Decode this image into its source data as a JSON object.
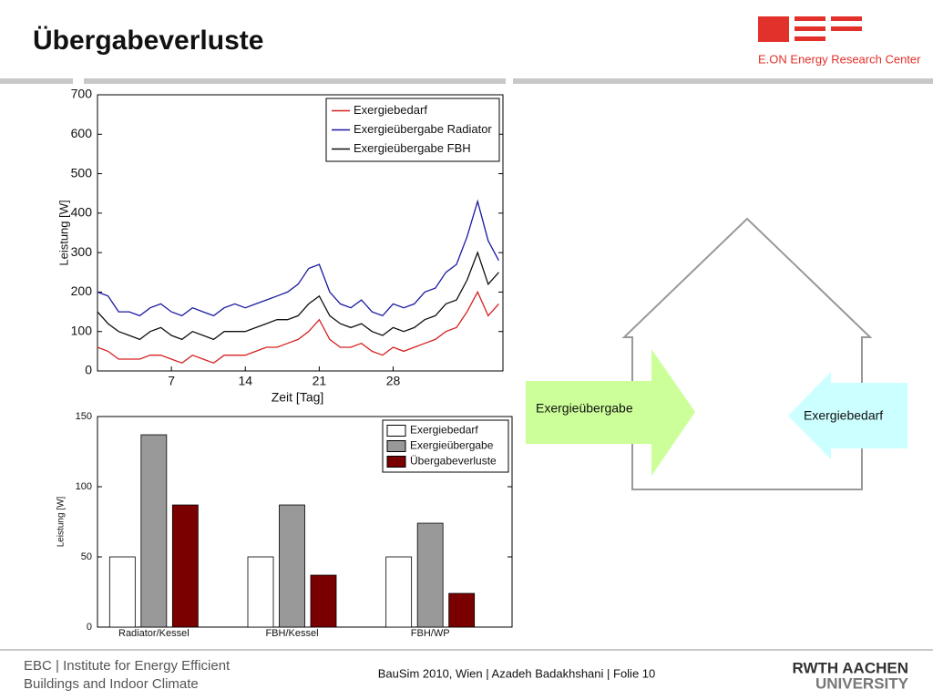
{
  "header": {
    "title": "Übergabeverluste",
    "logo_text": "E.ON Energy Research Center"
  },
  "chart_data": [
    {
      "type": "line",
      "xlabel": "Zeit [Tag]",
      "ylabel": "Leistung [W]",
      "x": [
        0,
        1,
        2,
        3,
        4,
        5,
        6,
        7,
        8,
        9,
        10,
        11,
        12,
        13,
        14,
        15,
        16,
        17,
        18,
        19,
        20,
        21,
        22,
        23,
        24,
        25,
        26,
        27,
        28,
        29,
        30,
        31,
        32,
        33,
        34,
        35,
        36,
        37,
        38
      ],
      "xlim": [
        0,
        38.4
      ],
      "xticks": [
        7,
        14,
        21,
        28
      ],
      "ylim": [
        0,
        700
      ],
      "yticks": [
        0,
        100,
        200,
        300,
        400,
        500,
        600,
        700
      ],
      "legend": "upper right",
      "series": [
        {
          "name": "Exergiebedarf",
          "color": "#d62020",
          "values": [
            60,
            50,
            30,
            30,
            30,
            40,
            40,
            30,
            20,
            40,
            30,
            20,
            40,
            40,
            40,
            50,
            60,
            60,
            70,
            80,
            100,
            130,
            80,
            60,
            60,
            70,
            50,
            40,
            60,
            50,
            60,
            70,
            80,
            100,
            110,
            150,
            200,
            140,
            170
          ]
        },
        {
          "name": "Exergieübergabe Radiator",
          "color": "#1a1aa0",
          "values": [
            200,
            190,
            150,
            150,
            140,
            160,
            170,
            150,
            140,
            160,
            150,
            140,
            160,
            170,
            160,
            170,
            180,
            190,
            200,
            220,
            260,
            270,
            200,
            170,
            160,
            180,
            150,
            140,
            170,
            160,
            170,
            200,
            210,
            250,
            270,
            340,
            430,
            330,
            280
          ]
        },
        {
          "name": "Exergieübergabe FBH",
          "color": "#111111",
          "values": [
            150,
            120,
            100,
            90,
            80,
            100,
            110,
            90,
            80,
            100,
            90,
            80,
            100,
            100,
            100,
            110,
            120,
            130,
            130,
            140,
            170,
            190,
            140,
            120,
            110,
            120,
            100,
            90,
            110,
            100,
            110,
            130,
            140,
            170,
            180,
            230,
            300,
            220,
            250
          ]
        }
      ]
    },
    {
      "type": "bar",
      "ylabel": "Leistung [W]",
      "categories": [
        "Radiator/Kessel",
        "FBH/Kessel",
        "FBH/WP"
      ],
      "ylim": [
        0,
        150
      ],
      "yticks": [
        0,
        50,
        100,
        150
      ],
      "legend": "upper right",
      "series": [
        {
          "name": "Exergiebedarf",
          "color": "#ffffff",
          "values": [
            50,
            50,
            50
          ]
        },
        {
          "name": "Exergieübergabe",
          "color": "#999999",
          "values": [
            137,
            87,
            74
          ]
        },
        {
          "name": "Übergabeverluste",
          "color": "#7a0000",
          "values": [
            87,
            37,
            24
          ]
        }
      ]
    }
  ],
  "diagram": {
    "arrow_in": "Exergieübergabe",
    "arrow_out": "Exergiebedarf"
  },
  "footer": {
    "institute_1": "EBC | Institute for Energy Efficient",
    "institute_2": "Buildings and Indoor Climate",
    "center": "BauSim 2010, Wien | Azadeh Badakhshani | Folie 10",
    "rwth_1": "RWTH AACHEN",
    "rwth_2": "UNIVERSITY"
  }
}
